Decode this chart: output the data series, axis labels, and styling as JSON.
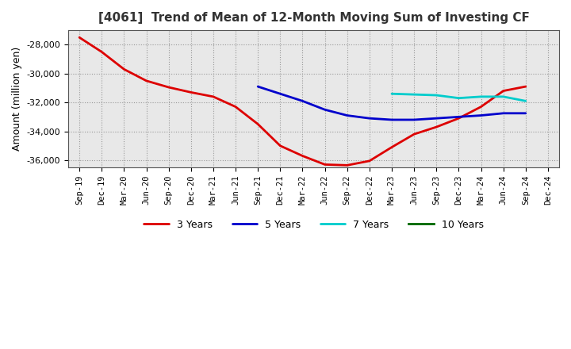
{
  "title": "[4061]  Trend of Mean of 12-Month Moving Sum of Investing CF",
  "ylabel": "Amount (million yen)",
  "ylim": [
    -36500,
    -27000
  ],
  "yticks": [
    -36000,
    -34000,
    -32000,
    -30000,
    -28000
  ],
  "background_color": "#ffffff",
  "plot_background": "#e8e8e8",
  "grid_color": "#999999",
  "tick_labels": [
    "Sep-19",
    "Dec-19",
    "Mar-20",
    "Jun-20",
    "Sep-20",
    "Dec-20",
    "Mar-21",
    "Jun-21",
    "Sep-21",
    "Dec-21",
    "Mar-22",
    "Jun-22",
    "Sep-22",
    "Dec-22",
    "Mar-23",
    "Jun-23",
    "Sep-23",
    "Dec-23",
    "Mar-24",
    "Jun-24",
    "Sep-24",
    "Dec-24"
  ],
  "series": {
    "3 Years": {
      "color": "#dd0000",
      "linewidth": 2.0,
      "x_indices": [
        0,
        1,
        2,
        3,
        4,
        5,
        6,
        7,
        8,
        9,
        10,
        11,
        12,
        13,
        14,
        15,
        16,
        17,
        18,
        19,
        20
      ],
      "values": [
        -27500,
        -28500,
        -29700,
        -30500,
        -30950,
        -31300,
        -31600,
        -32300,
        -33500,
        -35000,
        -35700,
        -36300,
        -36350,
        -36050,
        -35100,
        -34200,
        -33700,
        -33100,
        -32300,
        -31200,
        -30900
      ]
    },
    "5 Years": {
      "color": "#0000cc",
      "linewidth": 2.0,
      "x_indices": [
        8,
        9,
        10,
        11,
        12,
        13,
        14,
        15,
        16,
        17,
        18,
        19,
        20
      ],
      "values": [
        -30900,
        -31400,
        -31900,
        -32500,
        -32900,
        -33100,
        -33200,
        -33200,
        -33100,
        -33000,
        -32900,
        -32750,
        -32750
      ]
    },
    "7 Years": {
      "color": "#00cccc",
      "linewidth": 2.0,
      "x_indices": [
        14,
        15,
        16,
        17,
        18,
        19,
        20
      ],
      "values": [
        -31400,
        -31450,
        -31500,
        -31700,
        -31600,
        -31600,
        -31900
      ]
    },
    "10 Years": {
      "color": "#006600",
      "linewidth": 2.0,
      "x_indices": [],
      "values": []
    }
  },
  "legend_order": [
    "3 Years",
    "5 Years",
    "7 Years",
    "10 Years"
  ]
}
